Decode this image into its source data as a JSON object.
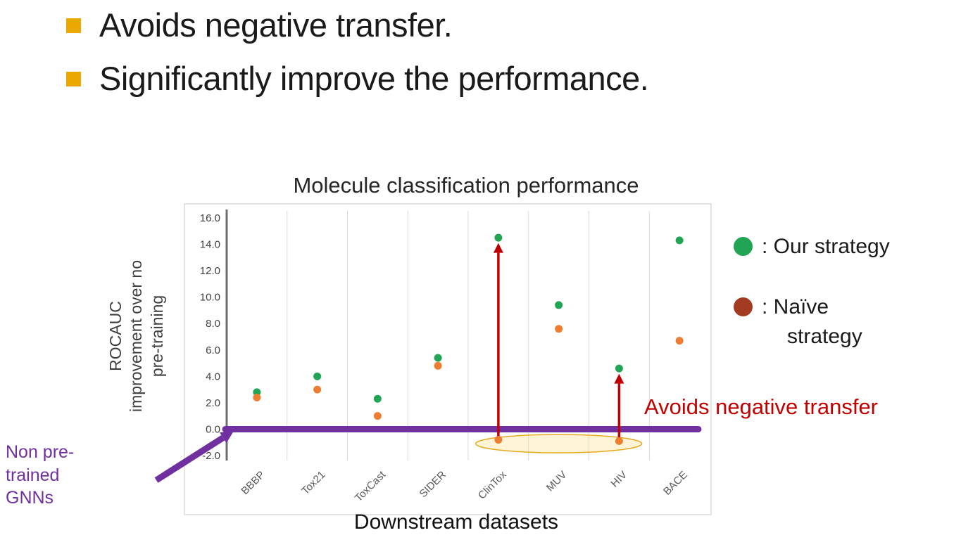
{
  "bullets": [
    {
      "text": "Avoids negative transfer."
    },
    {
      "text": "Significantly improve the performance."
    }
  ],
  "bullet_color": "#EAA800",
  "chart_data": {
    "type": "scatter",
    "title": "Molecule classification performance",
    "xlabel": "Downstream datasets",
    "ylabel": "ROCAUC\nimprovement over no\npre-training",
    "categories": [
      "BBBP",
      "Tox21",
      "ToxCast",
      "SIDER",
      "ClinTox",
      "MUV",
      "HIV",
      "BACE"
    ],
    "ylim": [
      -2.0,
      16.0
    ],
    "ytick_step": 2.0,
    "grid": "vertical-only",
    "legend_position": "right",
    "series": [
      {
        "name": "Our strategy",
        "color": "#22A455",
        "values": [
          2.8,
          4.0,
          2.3,
          5.4,
          14.5,
          9.4,
          4.6,
          14.3
        ]
      },
      {
        "name": "Naïve strategy",
        "color": "#ED7D31",
        "values": [
          2.4,
          3.0,
          1.0,
          4.8,
          -0.8,
          7.6,
          -0.9,
          6.7
        ]
      }
    ]
  },
  "legend": {
    "items": [
      {
        "label": ": Our strategy",
        "color": "#22A455"
      },
      {
        "label": ": Naïve strategy",
        "color": "#A33B23"
      }
    ]
  },
  "annotations": {
    "avoids_label": "Avoids negative transfer",
    "avoids_color": "#C00000",
    "non_pretrained_label": "Non pre-\ntrained\nGNNs",
    "non_pretrained_color": "#7030A0",
    "zero_line": {
      "y": 0,
      "color": "#7030A0"
    },
    "arrows": [
      {
        "category": "ClinTox",
        "from": -0.8,
        "to": 14.1,
        "color": "#C00000"
      },
      {
        "category": "HIV",
        "from": -0.9,
        "to": 4.2,
        "color": "#C00000"
      }
    ],
    "highlight_ellipse": {
      "center_between": [
        "ClinTox",
        "HIV"
      ],
      "y": -1.1,
      "fill": "#FFE699",
      "stroke": "#E3A008"
    }
  }
}
